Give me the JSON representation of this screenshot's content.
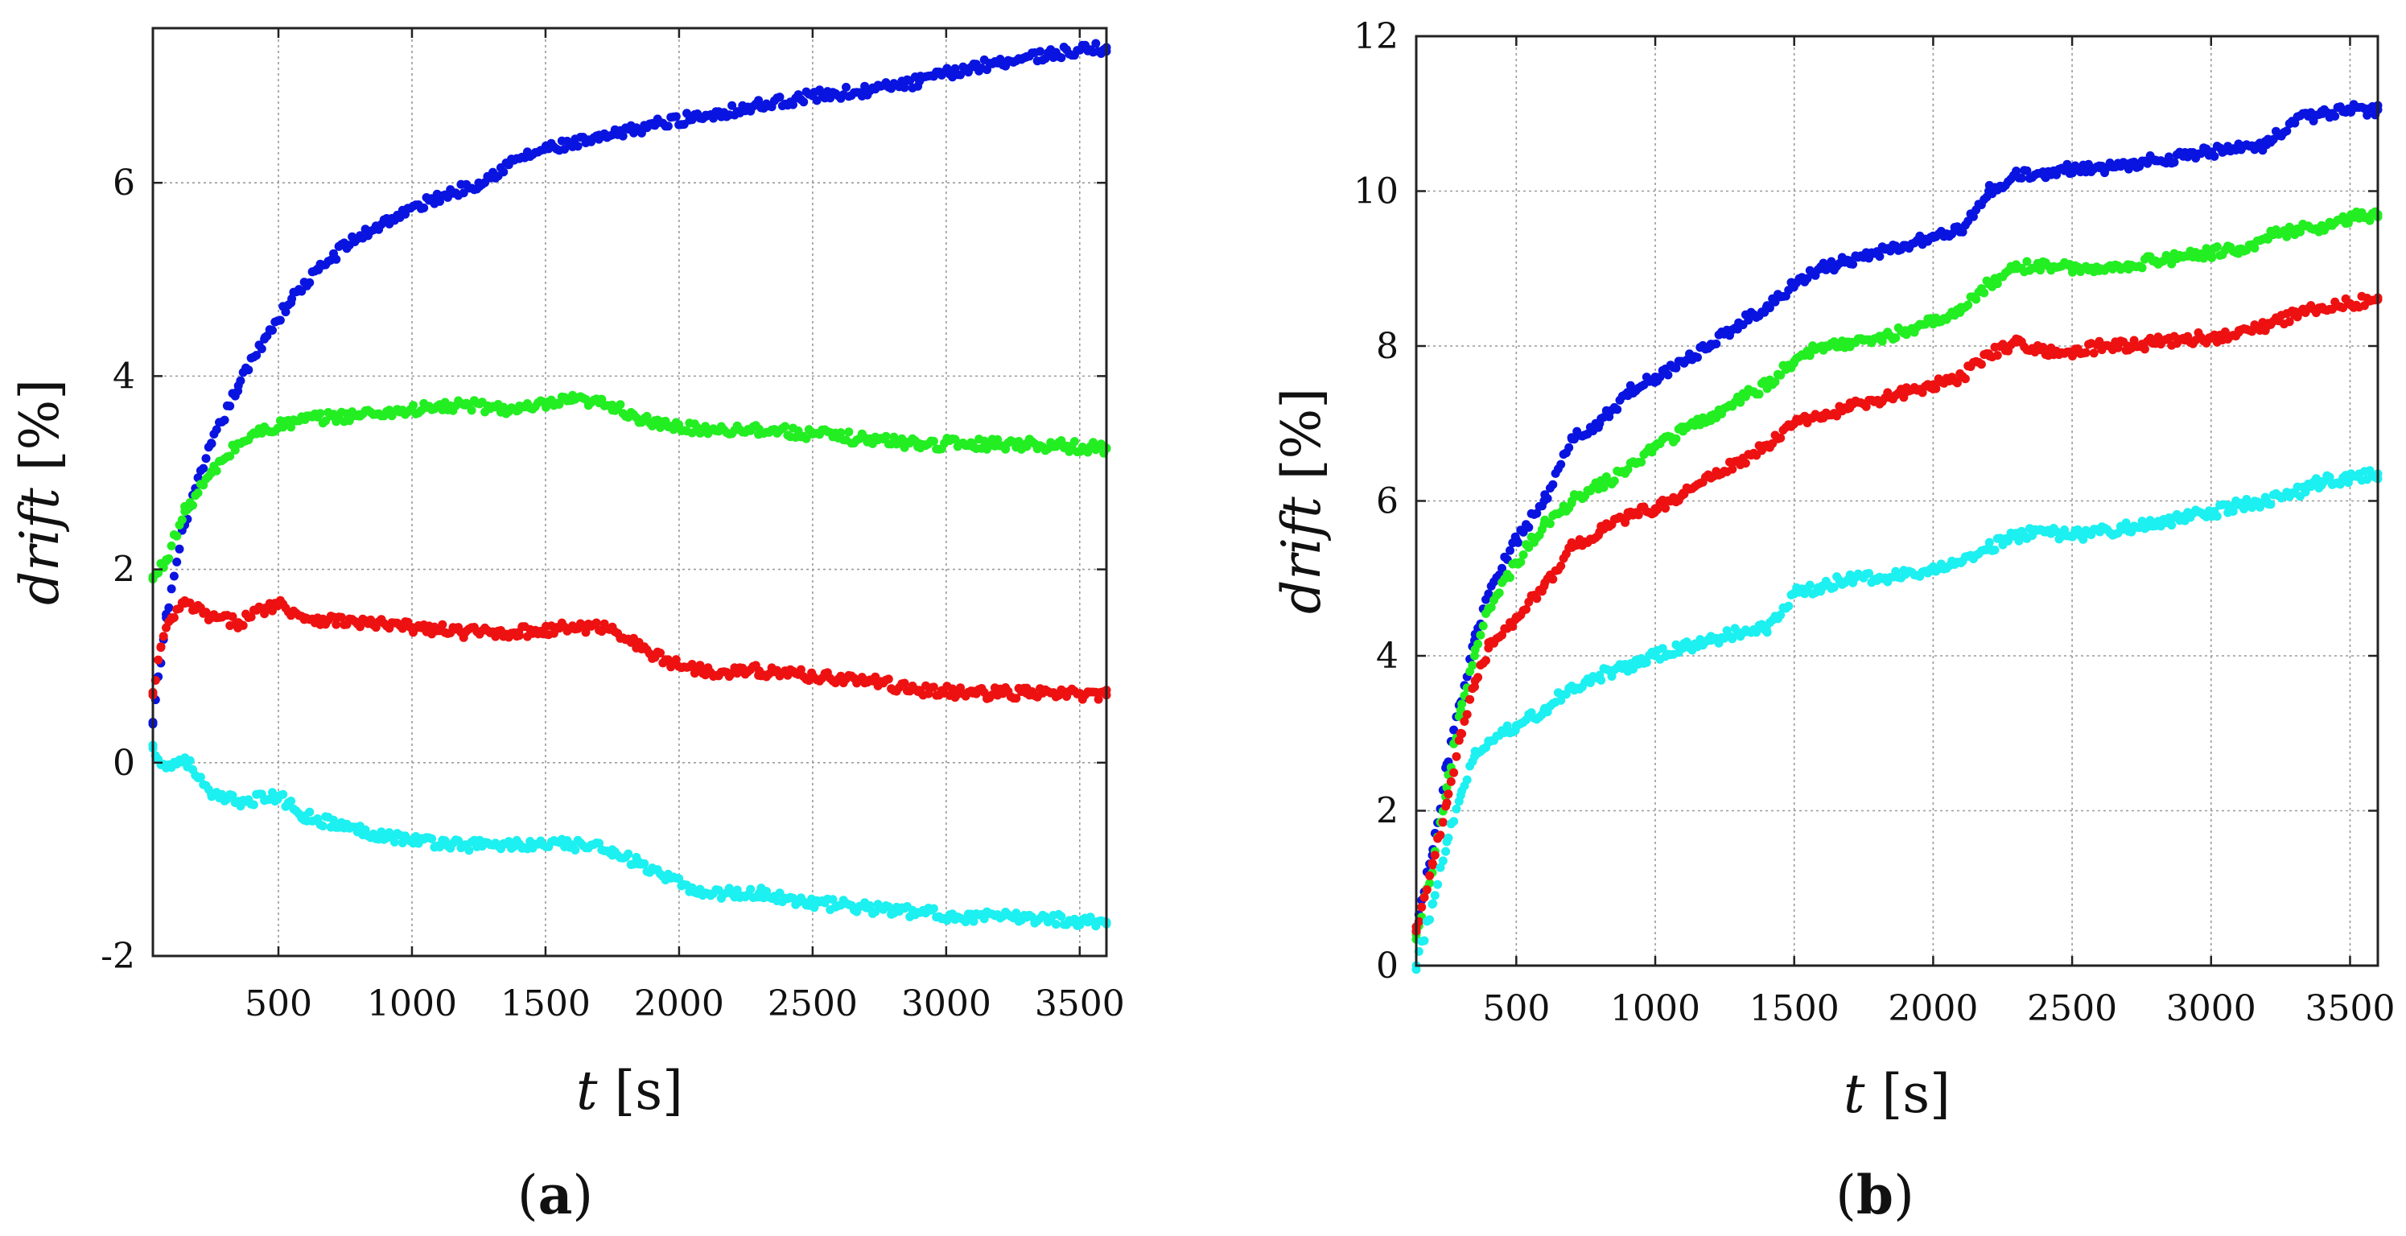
{
  "chart_data": [
    {
      "panel_label": "(a)",
      "type": "scatter",
      "xlabel": "t [s]",
      "ylabel": "drift [%]",
      "xlim": [
        30,
        3600
      ],
      "ylim": [
        -2,
        7.6
      ],
      "xticks": [
        500,
        1000,
        1500,
        2000,
        2500,
        3000,
        3500
      ],
      "yticks": [
        -2,
        0,
        2,
        4,
        6
      ],
      "grid": true,
      "series": [
        {
          "name": "blue",
          "color": "#0a14e0",
          "x": [
            30,
            80,
            150,
            250,
            350,
            450,
            550,
            650,
            750,
            900,
            1100,
            1250,
            1400,
            1500,
            1700,
            1900,
            2100,
            2300,
            2500,
            2700,
            2900,
            3100,
            3300,
            3600
          ],
          "y": [
            0.4,
            1.5,
            2.5,
            3.3,
            3.9,
            4.4,
            4.8,
            5.1,
            5.35,
            5.6,
            5.85,
            6.0,
            6.25,
            6.35,
            6.45,
            6.6,
            6.7,
            6.8,
            6.9,
            6.95,
            7.05,
            7.2,
            7.3,
            7.4
          ]
        },
        {
          "name": "green",
          "color": "#22ee22",
          "x": [
            30,
            80,
            150,
            250,
            350,
            450,
            600,
            800,
            1000,
            1200,
            1400,
            1600,
            1750,
            1900,
            2100,
            2300,
            2500,
            2700,
            2900,
            3100,
            3300,
            3600
          ],
          "y": [
            1.9,
            2.1,
            2.6,
            3.0,
            3.3,
            3.45,
            3.55,
            3.6,
            3.65,
            3.7,
            3.65,
            3.75,
            3.7,
            3.5,
            3.45,
            3.45,
            3.4,
            3.35,
            3.3,
            3.3,
            3.3,
            3.25
          ]
        },
        {
          "name": "red",
          "color": "#ee1111",
          "x": [
            30,
            60,
            100,
            150,
            250,
            350,
            450,
            500,
            600,
            800,
            1000,
            1200,
            1400,
            1600,
            1750,
            1850,
            1950,
            2100,
            2300,
            2500,
            2700,
            2900,
            3100,
            3300,
            3600
          ],
          "y": [
            0.7,
            1.2,
            1.5,
            1.65,
            1.5,
            1.45,
            1.6,
            1.65,
            1.5,
            1.45,
            1.4,
            1.35,
            1.35,
            1.4,
            1.4,
            1.2,
            1.05,
            0.95,
            0.95,
            0.9,
            0.85,
            0.75,
            0.72,
            0.72,
            0.7
          ]
        },
        {
          "name": "cyan",
          "color": "#1cf0f0",
          "x": [
            30,
            80,
            150,
            250,
            350,
            500,
            600,
            800,
            1000,
            1200,
            1400,
            1600,
            1750,
            1850,
            1950,
            2100,
            2300,
            2500,
            2700,
            2900,
            3100,
            3300,
            3600
          ],
          "y": [
            0.15,
            -0.05,
            0.05,
            -0.35,
            -0.4,
            -0.35,
            -0.55,
            -0.7,
            -0.8,
            -0.85,
            -0.85,
            -0.85,
            -0.9,
            -1.05,
            -1.2,
            -1.35,
            -1.35,
            -1.45,
            -1.5,
            -1.55,
            -1.6,
            -1.6,
            -1.65
          ]
        }
      ]
    },
    {
      "panel_label": "(b)",
      "type": "scatter",
      "xlabel": "t [s]",
      "ylabel": "drift [%]",
      "xlim": [
        140,
        3600
      ],
      "ylim": [
        0,
        12
      ],
      "xticks": [
        500,
        1000,
        1500,
        2000,
        2500,
        3000,
        3500
      ],
      "yticks": [
        0,
        2,
        4,
        6,
        8,
        10,
        12
      ],
      "grid": true,
      "series": [
        {
          "name": "blue",
          "color": "#0a14e0",
          "x": [
            140,
            200,
            250,
            300,
            350,
            400,
            500,
            600,
            700,
            800,
            900,
            1000,
            1100,
            1200,
            1300,
            1400,
            1500,
            1600,
            1700,
            1800,
            1900,
            2000,
            2100,
            2200,
            2300,
            2400,
            2500,
            2600,
            2700,
            2800,
            2900,
            3000,
            3100,
            3200,
            3300,
            3400,
            3500,
            3600
          ],
          "y": [
            0.5,
            1.5,
            2.6,
            3.4,
            4.2,
            4.8,
            5.5,
            6.0,
            6.8,
            7.0,
            7.4,
            7.6,
            7.8,
            8.0,
            8.3,
            8.5,
            8.8,
            9.0,
            9.1,
            9.2,
            9.3,
            9.4,
            9.5,
            10.0,
            10.2,
            10.2,
            10.3,
            10.3,
            10.35,
            10.4,
            10.45,
            10.5,
            10.55,
            10.6,
            10.9,
            11.0,
            11.05,
            11.05
          ]
        },
        {
          "name": "green",
          "color": "#22ee22",
          "x": [
            140,
            200,
            250,
            300,
            350,
            400,
            500,
            600,
            700,
            800,
            900,
            1000,
            1100,
            1200,
            1300,
            1400,
            1500,
            1600,
            1700,
            1800,
            1900,
            2000,
            2100,
            2200,
            2300,
            2400,
            2500,
            2600,
            2700,
            2800,
            2900,
            3000,
            3100,
            3200,
            3300,
            3400,
            3500,
            3600
          ],
          "y": [
            0.4,
            1.3,
            2.3,
            3.3,
            4.0,
            4.6,
            5.2,
            5.7,
            6.0,
            6.2,
            6.4,
            6.7,
            6.9,
            7.1,
            7.3,
            7.5,
            7.8,
            8.0,
            8.05,
            8.1,
            8.2,
            8.3,
            8.5,
            8.8,
            9.0,
            9.05,
            9.0,
            9.0,
            9.05,
            9.1,
            9.15,
            9.2,
            9.25,
            9.4,
            9.5,
            9.55,
            9.65,
            9.7
          ]
        },
        {
          "name": "red",
          "color": "#ee1111",
          "x": [
            140,
            200,
            250,
            300,
            350,
            400,
            500,
            600,
            700,
            800,
            900,
            1000,
            1100,
            1200,
            1300,
            1400,
            1500,
            1600,
            1700,
            1800,
            1900,
            2000,
            2100,
            2200,
            2300,
            2400,
            2500,
            2600,
            2700,
            2800,
            2900,
            3000,
            3100,
            3200,
            3300,
            3400,
            3500,
            3600
          ],
          "y": [
            0.5,
            1.3,
            2.1,
            3.0,
            3.6,
            4.1,
            4.5,
            4.9,
            5.4,
            5.6,
            5.8,
            5.9,
            6.1,
            6.3,
            6.5,
            6.7,
            7.0,
            7.1,
            7.2,
            7.3,
            7.4,
            7.5,
            7.6,
            7.9,
            8.05,
            7.95,
            7.9,
            8.0,
            8.0,
            8.05,
            8.1,
            8.1,
            8.2,
            8.25,
            8.4,
            8.5,
            8.55,
            8.6
          ]
        },
        {
          "name": "cyan",
          "color": "#1cf0f0",
          "x": [
            140,
            200,
            250,
            300,
            350,
            400,
            500,
            600,
            700,
            800,
            900,
            1000,
            1100,
            1200,
            1300,
            1400,
            1500,
            1600,
            1700,
            1800,
            1900,
            2000,
            2100,
            2200,
            2300,
            2400,
            2500,
            2600,
            2700,
            2800,
            2900,
            3000,
            3100,
            3200,
            3300,
            3400,
            3500,
            3600
          ],
          "y": [
            0.0,
            0.8,
            1.6,
            2.2,
            2.7,
            2.9,
            3.1,
            3.3,
            3.6,
            3.75,
            3.85,
            4.0,
            4.1,
            4.2,
            4.3,
            4.35,
            4.8,
            4.9,
            5.0,
            5.0,
            5.05,
            5.1,
            5.2,
            5.4,
            5.55,
            5.6,
            5.55,
            5.6,
            5.65,
            5.7,
            5.8,
            5.85,
            5.95,
            6.0,
            6.1,
            6.25,
            6.3,
            6.35
          ]
        }
      ]
    }
  ]
}
